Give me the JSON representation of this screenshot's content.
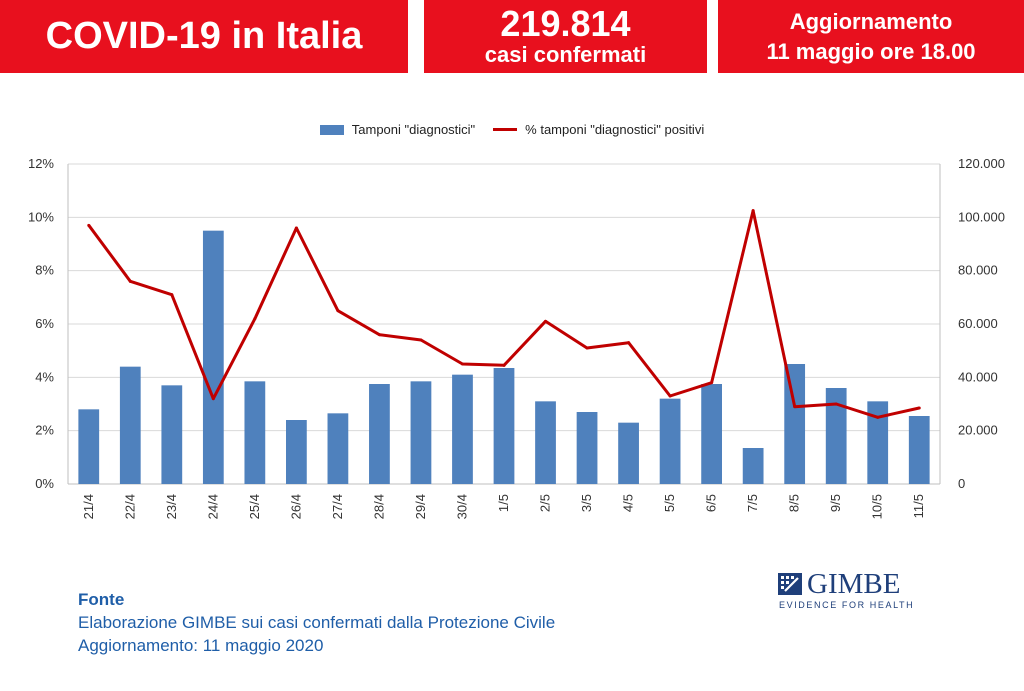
{
  "banner": {
    "title": "COVID-19 in Italia",
    "cases_number": "219.814",
    "cases_label": "casi confermati",
    "update_line1": "Aggiornamento",
    "update_line2": "11 maggio ore 18.00"
  },
  "colors": {
    "banner": "#e8101e",
    "bars": "#4f81bd",
    "line": "#c00000",
    "source_text": "#1f5ea8"
  },
  "chart_data": {
    "type": "bar",
    "categories": [
      "21/4",
      "22/4",
      "23/4",
      "24/4",
      "25/4",
      "26/4",
      "27/4",
      "28/4",
      "29/4",
      "30/4",
      "1/5",
      "2/5",
      "3/5",
      "4/5",
      "5/5",
      "6/5",
      "7/5",
      "8/5",
      "9/5",
      "10/5",
      "11/5"
    ],
    "series": [
      {
        "name": "Tamponi \"diagnostici\"",
        "type": "bar",
        "axis": "right",
        "values": [
          28000,
          44000,
          37000,
          95000,
          38500,
          24000,
          26500,
          37500,
          38500,
          41000,
          43500,
          31000,
          27000,
          23000,
          32000,
          37500,
          13500,
          45000,
          36000,
          31000,
          25500
        ]
      },
      {
        "name": "% tamponi \"diagnostici\" positivi",
        "type": "line",
        "axis": "left",
        "values": [
          9.7,
          7.6,
          7.1,
          3.2,
          6.2,
          9.6,
          6.5,
          5.6,
          5.4,
          4.5,
          4.45,
          6.1,
          5.1,
          5.3,
          3.3,
          3.8,
          10.25,
          2.9,
          3.0,
          2.5,
          2.85
        ]
      }
    ],
    "left_axis": {
      "ticks": [
        "0%",
        "2%",
        "4%",
        "6%",
        "8%",
        "10%",
        "12%"
      ],
      "ylim": [
        0,
        12
      ]
    },
    "right_axis": {
      "ticks": [
        "0",
        "20.000",
        "40.000",
        "60.000",
        "80.000",
        "100.000",
        "120.000"
      ],
      "ylim": [
        0,
        120000
      ]
    },
    "grid": true,
    "legend": "top-center"
  },
  "source": {
    "title": "Fonte",
    "line1": "Elaborazione GIMBE sui casi confermati dalla Protezione Civile",
    "line2": "Aggiornamento: 11 maggio 2020"
  },
  "logo": {
    "name": "GIMBE",
    "tagline": "EVIDENCE FOR HEALTH"
  }
}
